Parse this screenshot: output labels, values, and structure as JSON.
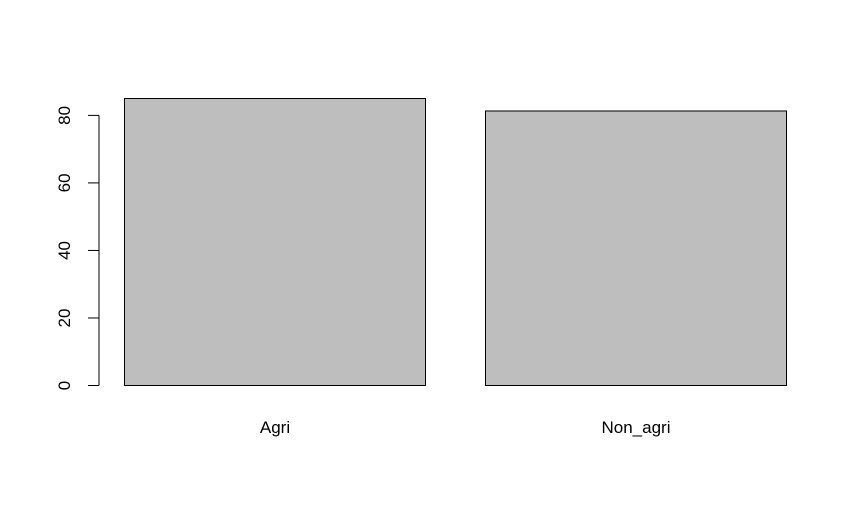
{
  "chart_data": {
    "type": "bar",
    "categories": [
      "Agri",
      "Non_agri"
    ],
    "values": [
      85,
      81.3
    ],
    "yticks": [
      0,
      20,
      40,
      60,
      80
    ],
    "ylim": [
      0,
      85
    ],
    "xlabel": "",
    "ylabel": "",
    "bar_color": "#bebebe",
    "border_color": "#000000",
    "grid": false
  }
}
